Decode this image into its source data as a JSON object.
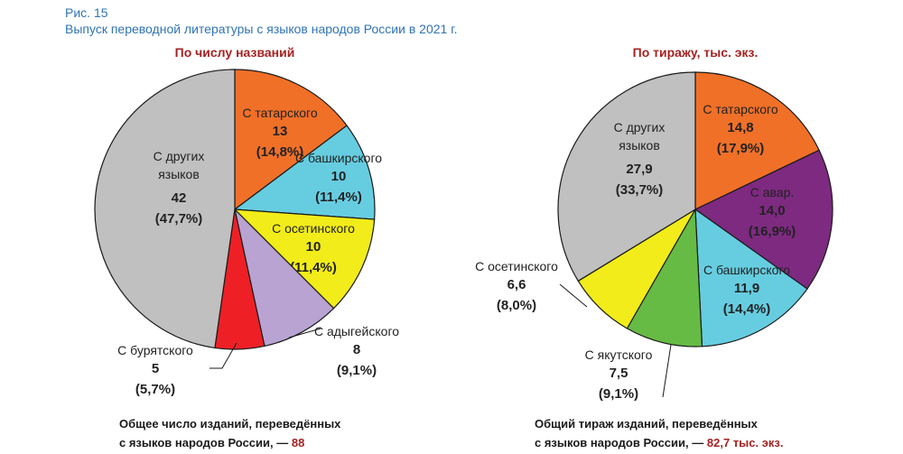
{
  "figure": {
    "label": "Рис. 15",
    "title": "Выпуск переводной литературы с языков народов России в 2021 г."
  },
  "chart_data": [
    {
      "type": "pie",
      "title": "По числу названий",
      "footer_text_1": "Общее число изданий, переведённых",
      "footer_text_2": "с языков народов России, —",
      "footer_value": "88",
      "slices": [
        {
          "name": "С татарского",
          "value": "13",
          "percent": "(14,8%)",
          "num": 13,
          "color": "#f07028"
        },
        {
          "name": "С башкирского",
          "value": "10",
          "percent": "(11,4%)",
          "num": 10,
          "color": "#66cde0"
        },
        {
          "name": "С осетинского",
          "value": "10",
          "percent": "(11,4%)",
          "num": 10,
          "color": "#f2ec1a"
        },
        {
          "name": "С адыгейского",
          "value": "8",
          "percent": "(9,1%)",
          "num": 8,
          "color": "#b9a3d3"
        },
        {
          "name": "С бурятского",
          "value": "5",
          "percent": "(5,7%)",
          "num": 5,
          "color": "#ee2026"
        },
        {
          "name": "С других языков",
          "value": "42",
          "percent": "(47,7%)",
          "num": 42,
          "color": "#c0c0c0"
        }
      ]
    },
    {
      "type": "pie",
      "title": "По тиражу, тыс. экз.",
      "footer_text_1": "Общий тираж изданий, переведённых",
      "footer_text_2": "с языков народов России, —",
      "footer_value": "82,7",
      "footer_unit": "тыс. экз.",
      "slices": [
        {
          "name": "С татарского",
          "value": "14,8",
          "percent": "(17,9%)",
          "num": 14.8,
          "color": "#f07028"
        },
        {
          "name": "С авар.",
          "value": "14,0",
          "percent": "(16,9%)",
          "num": 14.0,
          "color": "#7d2a80"
        },
        {
          "name": "С башкирского",
          "value": "11,9",
          "percent": "(14,4%)",
          "num": 11.9,
          "color": "#66cde0"
        },
        {
          "name": "С якутского",
          "value": "7,5",
          "percent": "(9,1%)",
          "num": 7.5,
          "color": "#66bb45"
        },
        {
          "name": "С осетинского",
          "value": "6,6",
          "percent": "(8,0%)",
          "num": 6.6,
          "color": "#f2ec1a"
        },
        {
          "name": "С других языков",
          "value": "27,9",
          "percent": "(33,7%)",
          "num": 27.9,
          "color": "#c0c0c0"
        }
      ]
    }
  ]
}
